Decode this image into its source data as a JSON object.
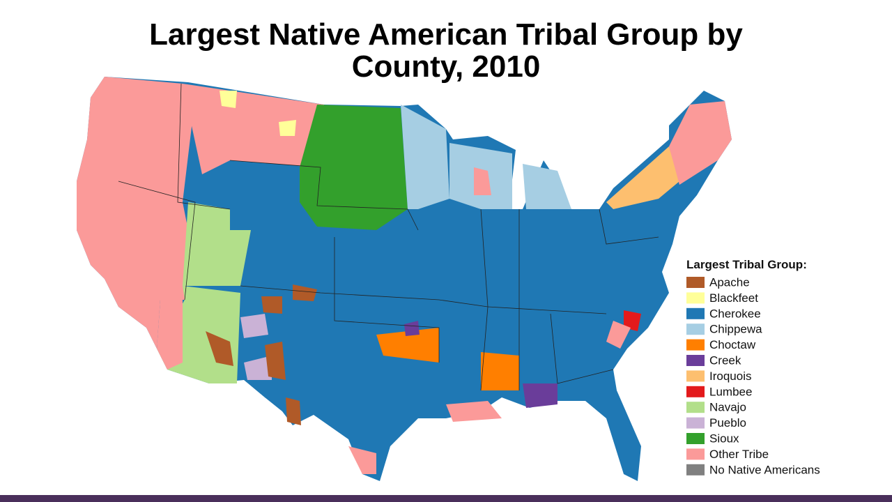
{
  "title_lines": [
    "Largest Native American Tribal Group by",
    "County, 2010"
  ],
  "legend": {
    "title": "Largest Tribal Group:",
    "items": [
      {
        "name": "Apache",
        "color": "#b05a28"
      },
      {
        "name": "Blackfeet",
        "color": "#ffff99"
      },
      {
        "name": "Cherokee",
        "color": "#1f78b4"
      },
      {
        "name": "Chippewa",
        "color": "#a6cee3"
      },
      {
        "name": "Choctaw",
        "color": "#ff7f00"
      },
      {
        "name": "Creek",
        "color": "#6a3d9a"
      },
      {
        "name": "Iroquois",
        "color": "#fdbf6f"
      },
      {
        "name": "Lumbee",
        "color": "#e31a1c"
      },
      {
        "name": "Navajo",
        "color": "#b2df8a"
      },
      {
        "name": "Pueblo",
        "color": "#cab2d6"
      },
      {
        "name": "Sioux",
        "color": "#33a02c"
      },
      {
        "name": "Other Tribe",
        "color": "#fb9a99"
      },
      {
        "name": "No Native Americans",
        "color": "#808080"
      }
    ]
  }
}
